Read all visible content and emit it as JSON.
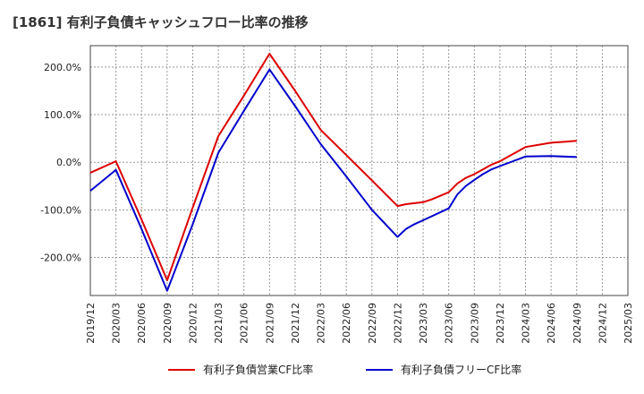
{
  "chart_data": {
    "type": "line",
    "title": "[1861]  有利子負債キャッシュフロー比率の推移",
    "xlabel": "",
    "ylabel": "",
    "x_ticks": [
      "2019/12",
      "2020/03",
      "2020/06",
      "2020/09",
      "2020/12",
      "2021/03",
      "2021/06",
      "2021/09",
      "2021/12",
      "2022/03",
      "2022/06",
      "2022/09",
      "2022/12",
      "2023/03",
      "2023/06",
      "2023/09",
      "2023/12",
      "2024/03",
      "2024/06",
      "2024/09",
      "2024/12",
      "2025/03"
    ],
    "y_ticks": [
      {
        "value": 200,
        "label": "200.0%"
      },
      {
        "value": 100,
        "label": "100.0%"
      },
      {
        "value": 0,
        "label": "0.0%"
      },
      {
        "value": -100,
        "label": "-100.0%"
      },
      {
        "value": -200,
        "label": "-200.0%"
      }
    ],
    "ylim": [
      -280,
      245
    ],
    "grid": true,
    "legend_position": "bottom",
    "series": [
      {
        "name": "有利子負債営業CF比率",
        "color": "#dd0000",
        "points": [
          [
            "2019/12",
            -22
          ],
          [
            "2020/03",
            2
          ],
          [
            "2020/06",
            -120
          ],
          [
            "2020/09",
            -248
          ],
          [
            "2020/12",
            -95
          ],
          [
            "2021/03",
            55
          ],
          [
            "2021/06",
            140
          ],
          [
            "2021/09",
            228
          ],
          [
            "2021/12",
            150
          ],
          [
            "2022/03",
            68
          ],
          [
            "2022/06",
            15
          ],
          [
            "2022/09",
            -38
          ],
          [
            "2022/12",
            -92
          ],
          [
            "2023/01",
            -88
          ],
          [
            "2023/03",
            -84
          ],
          [
            "2023/04",
            -78
          ],
          [
            "2023/06",
            -63
          ],
          [
            "2023/07",
            -45
          ],
          [
            "2023/08",
            -33
          ],
          [
            "2023/09",
            -25
          ],
          [
            "2023/10",
            -15
          ],
          [
            "2023/11",
            -5
          ],
          [
            "2023/12",
            2
          ],
          [
            "2024/03",
            32
          ],
          [
            "2024/06",
            41
          ],
          [
            "2024/09",
            45
          ]
        ]
      },
      {
        "name": "有利子負債フリーCF比率",
        "color": "#0000cc",
        "points": [
          [
            "2019/12",
            -60
          ],
          [
            "2020/03",
            -16
          ],
          [
            "2020/06",
            -140
          ],
          [
            "2020/09",
            -270
          ],
          [
            "2020/12",
            -130
          ],
          [
            "2021/03",
            20
          ],
          [
            "2021/06",
            108
          ],
          [
            "2021/09",
            195
          ],
          [
            "2021/12",
            118
          ],
          [
            "2022/03",
            38
          ],
          [
            "2022/06",
            -30
          ],
          [
            "2022/09",
            -100
          ],
          [
            "2022/12",
            -157
          ],
          [
            "2023/01",
            -140
          ],
          [
            "2023/02",
            -130
          ],
          [
            "2023/03",
            -122
          ],
          [
            "2023/06",
            -97
          ],
          [
            "2023/07",
            -68
          ],
          [
            "2023/08",
            -50
          ],
          [
            "2023/09",
            -37
          ],
          [
            "2023/10",
            -25
          ],
          [
            "2023/11",
            -15
          ],
          [
            "2023/12",
            -8
          ],
          [
            "2024/03",
            12
          ],
          [
            "2024/06",
            13
          ],
          [
            "2024/09",
            11
          ]
        ]
      }
    ]
  }
}
